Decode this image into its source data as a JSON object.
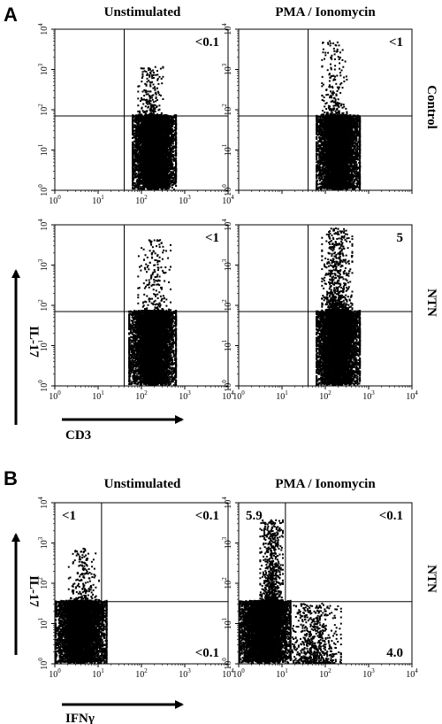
{
  "figure": {
    "panel_a_letter": "A",
    "panel_b_letter": "B"
  },
  "panel_a": {
    "column_titles": [
      "Unstimulated",
      "PMA / Ionomycin"
    ],
    "row_labels": [
      "Control",
      "NTN"
    ],
    "x_axis_label": "CD3",
    "y_axis_label": "IL-17"
  },
  "panel_b": {
    "column_titles": [
      "Unstimulated",
      "PMA / Ionomycin"
    ],
    "row_label": "NTN",
    "x_axis_label": "IFNγ",
    "y_axis_label": "IL-17"
  },
  "axis_ticks": {
    "bases": [
      "10",
      "10",
      "10",
      "10",
      "10"
    ],
    "exponents": [
      "0",
      "1",
      "2",
      "3",
      "4"
    ]
  },
  "chart_data": [
    {
      "type": "scatter",
      "panel": "A",
      "row": "Control",
      "column": "Unstimulated",
      "xlabel": "CD3",
      "ylabel": "IL-17",
      "x_scale": "log",
      "y_scale": "log",
      "xlim": [
        1,
        10000
      ],
      "ylim": [
        1,
        10000
      ],
      "gate_x": 40,
      "gate_y": 70,
      "quadrant_labels": [
        {
          "quadrant": "upper-right",
          "text": "<0.1"
        }
      ],
      "populations": [
        {
          "x_range": [
            60,
            600
          ],
          "y_range": [
            1,
            70
          ],
          "density": "dense"
        },
        {
          "x_range": [
            80,
            300
          ],
          "y_range": [
            70,
            1100
          ],
          "density": "sparse"
        }
      ]
    },
    {
      "type": "scatter",
      "panel": "A",
      "row": "Control",
      "column": "PMA / Ionomycin",
      "xlabel": "CD3",
      "ylabel": "IL-17",
      "x_scale": "log",
      "y_scale": "log",
      "xlim": [
        1,
        10000
      ],
      "ylim": [
        1,
        10000
      ],
      "gate_x": 40,
      "gate_y": 70,
      "quadrant_labels": [
        {
          "quadrant": "upper-right",
          "text": "<1"
        }
      ],
      "populations": [
        {
          "x_range": [
            60,
            600
          ],
          "y_range": [
            1,
            70
          ],
          "density": "dense"
        },
        {
          "x_range": [
            80,
            300
          ],
          "y_range": [
            70,
            5000
          ],
          "density": "sparse"
        }
      ]
    },
    {
      "type": "scatter",
      "panel": "A",
      "row": "NTN",
      "column": "Unstimulated",
      "xlabel": "CD3",
      "ylabel": "IL-17",
      "x_scale": "log",
      "y_scale": "log",
      "xlim": [
        1,
        10000
      ],
      "ylim": [
        1,
        10000
      ],
      "gate_x": 40,
      "gate_y": 70,
      "quadrant_labels": [
        {
          "quadrant": "upper-right",
          "text": "<1"
        }
      ],
      "populations": [
        {
          "x_range": [
            50,
            600
          ],
          "y_range": [
            1,
            70
          ],
          "density": "dense"
        },
        {
          "x_range": [
            80,
            450
          ],
          "y_range": [
            70,
            4000
          ],
          "density": "sparse"
        }
      ]
    },
    {
      "type": "scatter",
      "panel": "A",
      "row": "NTN",
      "column": "PMA / Ionomycin",
      "xlabel": "CD3",
      "ylabel": "IL-17",
      "x_scale": "log",
      "y_scale": "log",
      "xlim": [
        1,
        10000
      ],
      "ylim": [
        1,
        10000
      ],
      "gate_x": 40,
      "gate_y": 70,
      "quadrant_labels": [
        {
          "quadrant": "upper-right",
          "text": "5"
        }
      ],
      "populations": [
        {
          "x_range": [
            60,
            600
          ],
          "y_range": [
            1,
            70
          ],
          "density": "dense"
        },
        {
          "x_range": [
            80,
            400
          ],
          "y_range": [
            70,
            8000
          ],
          "density": "moderate"
        }
      ]
    },
    {
      "type": "scatter",
      "panel": "B",
      "row": "NTN",
      "column": "Unstimulated",
      "xlabel": "IFNγ",
      "ylabel": "IL-17",
      "x_scale": "log",
      "y_scale": "log",
      "xlim": [
        1,
        10000
      ],
      "ylim": [
        1,
        10000
      ],
      "gate_x": 12,
      "gate_y": 35,
      "quadrant_labels": [
        {
          "quadrant": "upper-left",
          "text": "<1"
        },
        {
          "quadrant": "upper-right",
          "text": "<0.1"
        },
        {
          "quadrant": "lower-right",
          "text": "<0.1"
        }
      ],
      "populations": [
        {
          "x_range": [
            1,
            15
          ],
          "y_range": [
            1,
            35
          ],
          "density": "dense"
        },
        {
          "x_range": [
            2,
            10
          ],
          "y_range": [
            35,
            700
          ],
          "density": "sparse"
        }
      ]
    },
    {
      "type": "scatter",
      "panel": "B",
      "row": "NTN",
      "column": "PMA / Ionomycin",
      "xlabel": "IFNγ",
      "ylabel": "IL-17",
      "x_scale": "log",
      "y_scale": "log",
      "xlim": [
        1,
        10000
      ],
      "ylim": [
        1,
        10000
      ],
      "gate_x": 12,
      "gate_y": 35,
      "quadrant_labels": [
        {
          "quadrant": "upper-left",
          "text": "5.9"
        },
        {
          "quadrant": "upper-right",
          "text": "<0.1"
        },
        {
          "quadrant": "lower-right",
          "text": "4.0"
        }
      ],
      "populations": [
        {
          "x_range": [
            1,
            15
          ],
          "y_range": [
            1,
            35
          ],
          "density": "dense"
        },
        {
          "x_range": [
            3,
            10
          ],
          "y_range": [
            35,
            3500
          ],
          "density": "moderate"
        },
        {
          "x_range": [
            12,
            220
          ],
          "y_range": [
            1,
            30
          ],
          "density": "moderate"
        }
      ]
    }
  ]
}
